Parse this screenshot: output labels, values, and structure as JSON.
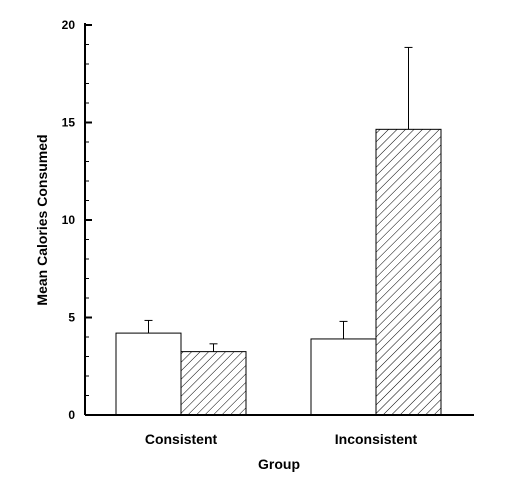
{
  "chart_data": {
    "type": "bar",
    "categories": [
      "Consistent",
      "Inconsistent"
    ],
    "series": [
      {
        "values": [
          4.2,
          3.9
        ],
        "errors": [
          0.65,
          0.9
        ],
        "fill": "open"
      },
      {
        "values": [
          3.25,
          14.65
        ],
        "errors": [
          0.4,
          4.2
        ],
        "fill": "hatched"
      }
    ],
    "xlabel": "Group",
    "ylabel": "Mean Calories Consumed",
    "ylim": [
      0,
      20
    ],
    "yticks": [
      0,
      5,
      10,
      15,
      20
    ],
    "legend": "none",
    "grid": false
  }
}
